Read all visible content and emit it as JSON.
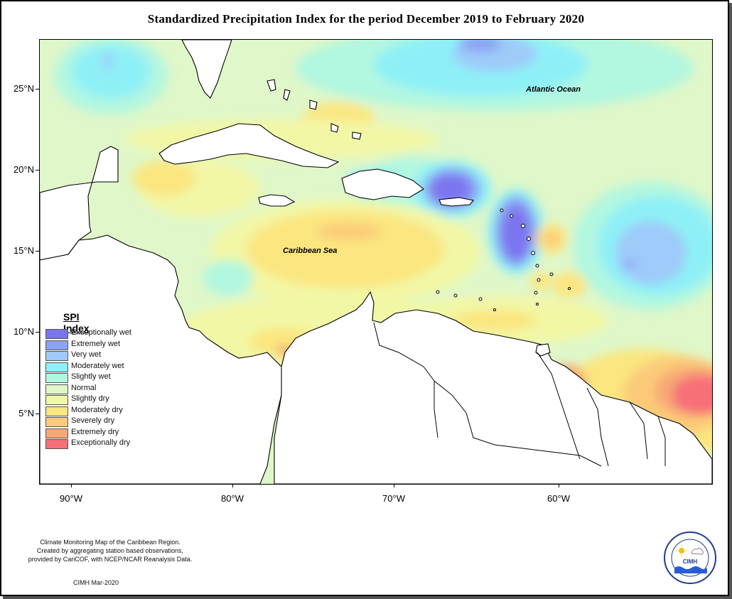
{
  "title": "Standardized Precipitation Index for the period December 2019 to February 2020",
  "axes": {
    "lat_ticks": [
      "25°N",
      "20°N",
      "15°N",
      "10°N",
      "5°N"
    ],
    "lon_ticks": [
      "90°W",
      "80°W",
      "70°W",
      "60°W"
    ]
  },
  "labels": {
    "atlantic": "Atlantic Ocean",
    "caribbean": "Caribbean Sea"
  },
  "legend": {
    "title": "SPI Index",
    "items": [
      {
        "label": "Exceptionally wet",
        "color": "#7b74ef"
      },
      {
        "label": "Extremely wet",
        "color": "#8ba3f3"
      },
      {
        "label": "Very wet",
        "color": "#9ecbf9"
      },
      {
        "label": "Moderately wet",
        "color": "#8ef0f7"
      },
      {
        "label": "Slightly wet",
        "color": "#b2f7e0"
      },
      {
        "label": "Normal",
        "color": "#dff7c9"
      },
      {
        "label": "Slightly dry",
        "color": "#f2f7a6"
      },
      {
        "label": "Moderately dry",
        "color": "#fbe680"
      },
      {
        "label": "Severely dry",
        "color": "#fbcb79"
      },
      {
        "label": "Extremely dry",
        "color": "#f7a875"
      },
      {
        "label": "Exceptionally dry",
        "color": "#f76f78"
      }
    ]
  },
  "footnote": {
    "line1": "Climate Monitoring Map of the Caribbean Region.",
    "line2": "Created by aggregating station based observations,",
    "line3": "provided by CariCOF, with NCEP/NCAR Reanalysis Data."
  },
  "credit": "CIMH Mar-2020",
  "logo": {
    "text": "CIMH",
    "ring_text": "Caribbean Institute for Meteorology and Hydrology",
    "icon": "cimh-logo-sun-cloud-wave"
  }
}
